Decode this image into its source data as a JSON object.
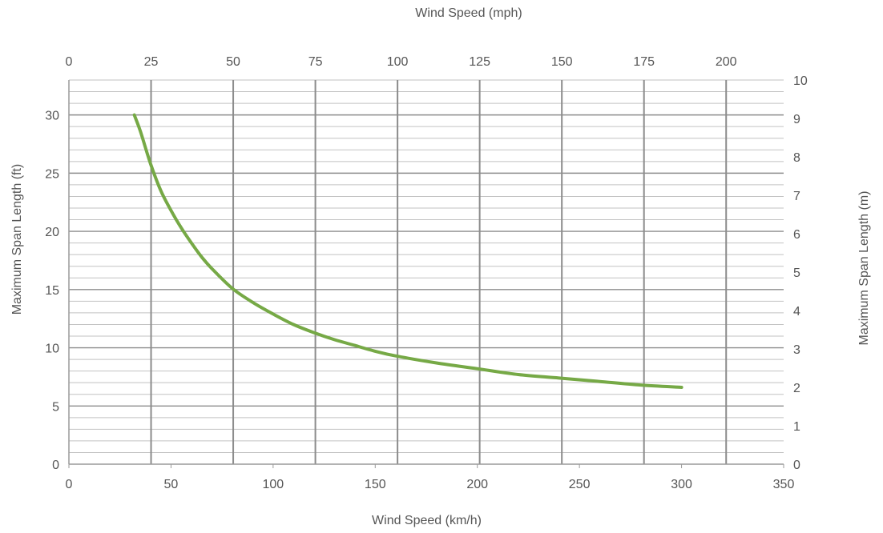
{
  "chart_data": {
    "type": "line",
    "x_bottom_label": "Wind Speed (km/h)",
    "x_top_label": "Wind Speed (mph)",
    "y_left_label": "Maximum Span Length (ft)",
    "y_right_label": "Maximum Span Length (m)",
    "x_bottom_range": [
      0,
      350
    ],
    "x_bottom_ticks": [
      "0",
      "50",
      "100",
      "150",
      "200",
      "250",
      "300",
      "350"
    ],
    "x_top_range": [
      0,
      217.5
    ],
    "x_top_ticks": [
      "0",
      "25",
      "50",
      "75",
      "100",
      "125",
      "150",
      "175",
      "200"
    ],
    "y_left_range": [
      0,
      33
    ],
    "y_left_ticks": [
      "0",
      "5",
      "10",
      "15",
      "20",
      "25",
      "30"
    ],
    "y_right_range": [
      0,
      10
    ],
    "y_right_ticks": [
      "0",
      "1",
      "2",
      "3",
      "4",
      "5",
      "6",
      "7",
      "8",
      "9",
      "10"
    ],
    "grid": true,
    "series": [
      {
        "color": "#76a946",
        "x": [
          32,
          35,
          40,
          45,
          50,
          55,
          60,
          65,
          70,
          80,
          90,
          100,
          110,
          120,
          130,
          140,
          150,
          160,
          180,
          200,
          220,
          240,
          260,
          280,
          300
        ],
        "y": [
          30,
          28.6,
          25.8,
          23.5,
          21.8,
          20.3,
          19.0,
          17.8,
          16.8,
          15.1,
          13.9,
          12.9,
          12.0,
          11.3,
          10.7,
          10.2,
          9.7,
          9.3,
          8.7,
          8.2,
          7.7,
          7.4,
          7.1,
          6.8,
          6.6
        ]
      }
    ]
  }
}
